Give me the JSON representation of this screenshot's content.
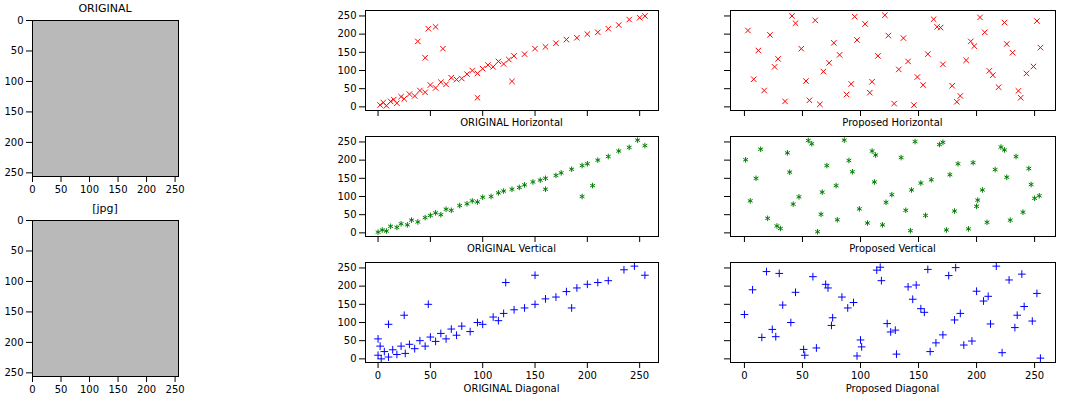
{
  "chart_data": [
    {
      "type": "image",
      "title": "ORIGINAL",
      "xlim": [
        0,
        256
      ],
      "ylim": [
        0,
        256
      ],
      "xticks": [
        0,
        50,
        100,
        150,
        200,
        250
      ],
      "yticks": [
        0,
        50,
        100,
        150,
        200,
        250
      ]
    },
    {
      "type": "image",
      "title": "[jpg]",
      "xlim": [
        0,
        256
      ],
      "ylim": [
        0,
        256
      ],
      "xticks": [
        0,
        50,
        100,
        150,
        200,
        250
      ],
      "yticks": [
        0,
        50,
        100,
        150,
        200,
        250
      ]
    },
    {
      "type": "scatter",
      "xlabel": "ORIGINAL  Horizontal",
      "color": "#ff0000",
      "marker": "x",
      "tick_labels": "y",
      "xlim": [
        -12,
        268
      ],
      "ylim": [
        -10,
        265
      ],
      "xticks": [
        0,
        50,
        100,
        150,
        200,
        250
      ],
      "yticks": [
        0,
        50,
        100,
        150,
        200,
        250
      ],
      "x": [
        2,
        5,
        8,
        12,
        15,
        18,
        22,
        25,
        30,
        35,
        40,
        45,
        50,
        55,
        60,
        65,
        70,
        75,
        80,
        85,
        90,
        95,
        100,
        105,
        110,
        115,
        120,
        125,
        130,
        140,
        150,
        160,
        170,
        180,
        190,
        200,
        210,
        220,
        230,
        240,
        250,
        255,
        48,
        55,
        45,
        38,
        95,
        128,
        62
      ],
      "y": [
        5,
        12,
        3,
        15,
        20,
        10,
        28,
        22,
        35,
        30,
        45,
        40,
        60,
        52,
        68,
        62,
        80,
        75,
        78,
        90,
        100,
        92,
        105,
        115,
        110,
        125,
        118,
        130,
        140,
        145,
        160,
        165,
        175,
        185,
        190,
        200,
        205,
        215,
        225,
        240,
        245,
        250,
        215,
        220,
        135,
        180,
        25,
        70,
        160
      ]
    },
    {
      "type": "scatter",
      "xlabel": "ORIGINAL Vertical",
      "color": "#008000",
      "marker": "star",
      "tick_labels": "y",
      "xlim": [
        -12,
        268
      ],
      "ylim": [
        -10,
        265
      ],
      "xticks": [
        0,
        50,
        100,
        150,
        200,
        250
      ],
      "yticks": [
        0,
        50,
        100,
        150,
        200,
        250
      ],
      "x": [
        0,
        4,
        8,
        12,
        18,
        22,
        28,
        32,
        38,
        45,
        50,
        55,
        60,
        65,
        70,
        78,
        85,
        90,
        95,
        100,
        108,
        115,
        120,
        128,
        135,
        140,
        148,
        155,
        160,
        170,
        175,
        185,
        195,
        200,
        210,
        220,
        230,
        240,
        248,
        255,
        195,
        205,
        160
      ],
      "y": [
        2,
        8,
        5,
        18,
        15,
        25,
        22,
        35,
        30,
        42,
        48,
        55,
        50,
        65,
        62,
        75,
        80,
        88,
        85,
        98,
        100,
        110,
        115,
        120,
        125,
        132,
        140,
        145,
        150,
        158,
        165,
        175,
        185,
        190,
        200,
        210,
        225,
        235,
        255,
        240,
        100,
        130,
        120
      ]
    },
    {
      "type": "scatter",
      "xlabel": "ORIGINAL Diagonal",
      "color": "#0000ff",
      "marker": "plus",
      "xlim": [
        -12,
        268
      ],
      "ylim": [
        -10,
        265
      ],
      "xticks": [
        0,
        50,
        100,
        150,
        200,
        250
      ],
      "yticks": [
        0,
        50,
        100,
        150,
        200,
        250
      ],
      "x": [
        0,
        3,
        6,
        10,
        14,
        18,
        22,
        26,
        30,
        35,
        40,
        45,
        50,
        55,
        60,
        65,
        70,
        75,
        80,
        88,
        95,
        100,
        110,
        115,
        120,
        130,
        140,
        150,
        160,
        170,
        180,
        190,
        200,
        210,
        220,
        235,
        245,
        255,
        0,
        2,
        10,
        25,
        48,
        122,
        150,
        185
      ],
      "y": [
        10,
        0,
        20,
        5,
        25,
        12,
        35,
        15,
        40,
        28,
        50,
        35,
        60,
        48,
        70,
        55,
        82,
        65,
        90,
        75,
        100,
        95,
        115,
        105,
        125,
        135,
        140,
        150,
        165,
        170,
        185,
        195,
        205,
        210,
        215,
        245,
        255,
        230,
        55,
        35,
        95,
        120,
        150,
        210,
        230,
        140
      ]
    },
    {
      "type": "scatter",
      "xlabel": "Proposed Horizontal",
      "color": "#ff0000",
      "marker": "x",
      "tick_labels": false,
      "xlim": [
        -12,
        268
      ],
      "ylim": [
        -10,
        265
      ],
      "xticks": [
        0,
        50,
        100,
        150,
        200,
        250
      ],
      "yticks": [
        0,
        50,
        100,
        150,
        200,
        250
      ],
      "x": [
        3,
        17,
        29,
        41,
        56,
        68,
        77,
        92,
        104,
        115,
        129,
        137,
        149,
        163,
        171,
        186,
        198,
        207,
        219,
        231,
        243,
        252,
        8,
        22,
        35,
        49,
        61,
        73,
        88,
        97,
        110,
        121,
        133,
        146,
        158,
        166,
        179,
        191,
        203,
        214,
        226,
        238,
        249,
        12,
        26,
        44,
        53,
        65,
        82,
        95,
        108,
        124,
        141,
        154,
        169,
        183,
        195,
        211,
        224,
        236,
        255
      ],
      "y": [
        210,
        45,
        132,
        250,
        18,
        97,
        176,
        63,
        228,
        140,
        9,
        189,
        82,
        241,
        117,
        30,
        167,
        205,
        54,
        149,
        92,
        236,
        76,
        198,
        15,
        160,
        238,
        121,
        34,
        184,
        69,
        252,
        103,
        5,
        145,
        220,
        58,
        128,
        246,
        87,
        173,
        25,
        111,
        155,
        110,
        230,
        71,
        7,
        143,
        248,
        39,
        196,
        125,
        60,
        218,
        14,
        180,
        99,
        232,
        44,
        163
      ]
    },
    {
      "type": "scatter",
      "xlabel": "Proposed Vertical",
      "color": "#008000",
      "marker": "star",
      "tick_labels": false,
      "xlim": [
        -12,
        268
      ],
      "ylim": [
        -10,
        265
      ],
      "xticks": [
        0,
        50,
        100,
        150,
        200,
        250
      ],
      "yticks": [
        0,
        50,
        100,
        150,
        200,
        250
      ],
      "x": [
        5,
        14,
        31,
        39,
        58,
        66,
        79,
        90,
        106,
        113,
        127,
        139,
        147,
        161,
        174,
        184,
        200,
        205,
        221,
        229,
        245,
        250,
        10,
        20,
        37,
        47,
        63,
        71,
        86,
        99,
        112,
        119,
        135,
        144,
        156,
        168,
        177,
        193,
        201,
        216,
        224,
        240,
        247,
        1,
        28,
        42,
        55,
        67,
        80,
        93,
        110,
        122,
        143,
        152,
        171,
        181,
        197,
        209,
        226,
        234,
        254
      ],
      "y": [
        88,
        230,
        12,
        167,
        245,
        51,
        130,
        199,
        27,
        214,
        105,
        62,
        251,
        146,
        8,
        190,
        73,
        118,
        236,
        35,
        177,
        95,
        150,
        40,
        220,
        99,
        3,
        185,
        255,
        66,
        140,
        22,
        207,
        118,
        48,
        243,
        160,
        11,
        90,
        174,
        228,
        57,
        133,
        201,
        19,
        79,
        254,
        112,
        36,
        168,
        225,
        84,
        6,
        137,
        249,
        60,
        193,
        29,
        153,
        210,
        102
      ]
    },
    {
      "type": "scatter",
      "xlabel": "Proposed Diagonal",
      "color": "#0000ff",
      "marker": "plus",
      "tick_labels": "x",
      "xlim": [
        -12,
        268
      ],
      "ylim": [
        -10,
        265
      ],
      "xticks": [
        0,
        50,
        100,
        150,
        200,
        250
      ],
      "yticks": [
        0,
        50,
        100,
        150,
        200,
        250
      ],
      "x": [
        0,
        19,
        27,
        44,
        52,
        70,
        75,
        94,
        101,
        117,
        126,
        141,
        152,
        160,
        176,
        181,
        196,
        210,
        217,
        233,
        241,
        255,
        7,
        24,
        33,
        51,
        59,
        76,
        84,
        100,
        114,
        123,
        131,
        148,
        155,
        171,
        182,
        189,
        206,
        212,
        228,
        235,
        252,
        15,
        30,
        40,
        62,
        72,
        89,
        97,
        118,
        130,
        145,
        158,
        165,
        186,
        200,
        222,
        239,
        248
      ],
      "y": [
        122,
        240,
        61,
        183,
        10,
        205,
        92,
        155,
        33,
        252,
        74,
        198,
        138,
        20,
        229,
        107,
        49,
        172,
        255,
        86,
        144,
        2,
        190,
        81,
        148,
        26,
        226,
        113,
        170,
        52,
        244,
        97,
        13,
        203,
        128,
        66,
        251,
        38,
        159,
        96,
        217,
        120,
        180,
        59,
        235,
        100,
        30,
        195,
        140,
        8,
        215,
        79,
        164,
        246,
        44,
        125,
        186,
        17,
        233,
        104
      ]
    }
  ]
}
